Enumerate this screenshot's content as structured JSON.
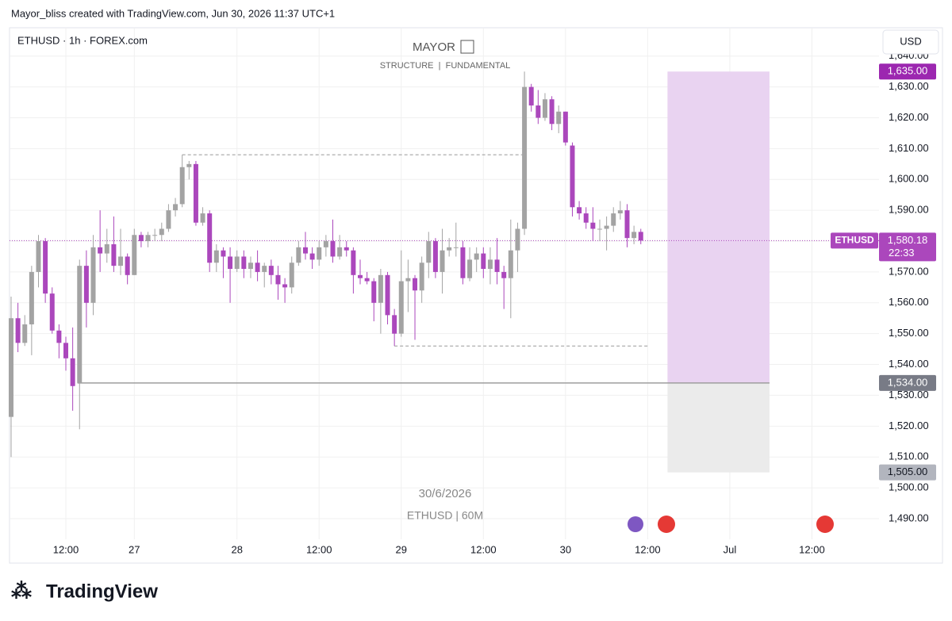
{
  "header": {
    "credit": "Mayor_bliss created with TradingView.com, Jun 30, 2026 11:37 UTC+1"
  },
  "chart_data": {
    "type": "candlestick",
    "symbol": "ETHUSD · 1h · FOREX.com",
    "currency": "USD",
    "watermark": {
      "title": "MAYOR",
      "subtitle": "STRUCTURE  |  FUNDAMENTAL",
      "date": "30/6/2026",
      "pair": "ETHUSD | 60M"
    },
    "up_color": "#a3a3a3",
    "down_color": "#ab47bc",
    "open": [
      1523,
      1555,
      1547,
      1553,
      1570,
      1580,
      1563,
      1551,
      1547,
      1542,
      1534,
      1572,
      1560,
      1578,
      1576,
      1579,
      1572,
      1575,
      1569,
      1582,
      1580,
      1582,
      1582,
      1584,
      1590,
      1592,
      1604,
      1605,
      1586,
      1589,
      1573,
      1577,
      1575,
      1571,
      1575,
      1571,
      1573,
      1570,
      1572,
      1569,
      1566,
      1565,
      1573,
      1578,
      1576,
      1574,
      1578,
      1580,
      1575,
      1578,
      1577,
      1569,
      1568,
      1567,
      1560,
      1569,
      1556,
      1550,
      1567,
      1568,
      1564,
      1573,
      1580,
      1570,
      1577,
      1578,
      1578,
      1568,
      1574,
      1576,
      1571,
      1574,
      1570,
      1568,
      1577,
      1584,
      1630,
      1624,
      1620,
      1626,
      1618,
      1622,
      1611,
      1591,
      1589,
      1586,
      1584,
      1584,
      1585,
      1589,
      1590,
      1581,
      1583
    ],
    "high": [
      1562,
      1560,
      1556,
      1572,
      1582,
      1581,
      1565,
      1553,
      1549,
      1552,
      1574,
      1577,
      1582,
      1590,
      1584,
      1588,
      1584,
      1576,
      1584,
      1583,
      1583,
      1584,
      1586,
      1592,
      1594,
      1608,
      1606,
      1606,
      1591,
      1590,
      1579,
      1578,
      1578,
      1577,
      1577,
      1575,
      1577,
      1573,
      1574,
      1572,
      1568,
      1575,
      1580,
      1583,
      1578,
      1580,
      1582,
      1587,
      1582,
      1580,
      1578,
      1574,
      1570,
      1568,
      1571,
      1570,
      1558,
      1577,
      1574,
      1569,
      1575,
      1583,
      1581,
      1584,
      1581,
      1586,
      1580,
      1578,
      1578,
      1578,
      1578,
      1581,
      1572,
      1587,
      1586,
      1635,
      1631,
      1629,
      1628,
      1627,
      1624,
      1622,
      1612,
      1593,
      1591,
      1591,
      1587,
      1588,
      1591,
      1593,
      1592,
      1585,
      1584
    ],
    "low": [
      1510,
      1544,
      1546,
      1543,
      1565,
      1560,
      1550,
      1542,
      1538,
      1525,
      1519,
      1552,
      1556,
      1570,
      1573,
      1570,
      1569,
      1566,
      1569,
      1578,
      1578,
      1580,
      1580,
      1583,
      1588,
      1591,
      1600,
      1585,
      1585,
      1570,
      1570,
      1568,
      1560,
      1570,
      1568,
      1568,
      1567,
      1565,
      1566,
      1561,
      1560,
      1563,
      1572,
      1574,
      1571,
      1572,
      1575,
      1573,
      1574,
      1575,
      1563,
      1566,
      1566,
      1554,
      1550,
      1553,
      1546,
      1549,
      1557,
      1548,
      1560,
      1568,
      1568,
      1563,
      1575,
      1575,
      1566,
      1567,
      1570,
      1568,
      1566,
      1566,
      1558,
      1555,
      1570,
      1582,
      1622,
      1618,
      1619,
      1616,
      1615,
      1611,
      1588,
      1587,
      1584,
      1580,
      1580,
      1577,
      1583,
      1587,
      1578,
      1579,
      1579
    ],
    "close": [
      1555,
      1547,
      1553,
      1570,
      1580,
      1563,
      1551,
      1547,
      1542,
      1533,
      1572,
      1560,
      1578,
      1576,
      1579,
      1572,
      1575,
      1569,
      1582,
      1580,
      1582,
      1582,
      1584,
      1590,
      1592,
      1604,
      1605,
      1586,
      1589,
      1573,
      1577,
      1575,
      1571,
      1575,
      1571,
      1573,
      1570,
      1572,
      1569,
      1566,
      1565,
      1573,
      1578,
      1576,
      1574,
      1578,
      1580,
      1575,
      1578,
      1577,
      1569,
      1568,
      1567,
      1560,
      1569,
      1556,
      1550,
      1567,
      1568,
      1564,
      1573,
      1580,
      1570,
      1577,
      1578,
      1578,
      1568,
      1574,
      1576,
      1571,
      1574,
      1570,
      1568,
      1577,
      1584,
      1630,
      1624,
      1620,
      1626,
      1618,
      1622,
      1612,
      1591,
      1589,
      1586,
      1584,
      1584,
      1585,
      1589,
      1590,
      1581,
      1583,
      1580.18
    ],
    "xlim": [
      -0.23,
      126.8
    ],
    "xticks": [
      {
        "value": 8,
        "label": "12:00"
      },
      {
        "value": 18,
        "label": "27"
      },
      {
        "value": 33,
        "label": "28"
      },
      {
        "value": 45,
        "label": "12:00"
      },
      {
        "value": 57,
        "label": "29"
      },
      {
        "value": 69,
        "label": "12:00"
      },
      {
        "value": 81,
        "label": "30"
      },
      {
        "value": 93,
        "label": "12:00"
      },
      {
        "value": 105,
        "label": "Jul"
      },
      {
        "value": 117,
        "label": "12:00"
      }
    ],
    "ylim": [
      1483.3,
      1649.2
    ],
    "yticks": [
      {
        "value": 1490,
        "label": "1,490.00"
      },
      {
        "value": 1500,
        "label": "1,500.00"
      },
      {
        "value": 1510,
        "label": "1,510.00"
      },
      {
        "value": 1520,
        "label": "1,520.00"
      },
      {
        "value": 1530,
        "label": "1,530.00"
      },
      {
        "value": 1540,
        "label": "1,540.00"
      },
      {
        "value": 1550,
        "label": "1,550.00"
      },
      {
        "value": 1560,
        "label": "1,560.00"
      },
      {
        "value": 1570,
        "label": "1,570.00"
      },
      {
        "value": 1580,
        "label": "1,580.00"
      },
      {
        "value": 1590,
        "label": "1,590.00"
      },
      {
        "value": 1600,
        "label": "1,600.00"
      },
      {
        "value": 1610,
        "label": "1,610.00"
      },
      {
        "value": 1620,
        "label": "1,620.00"
      },
      {
        "value": 1630,
        "label": "1,630.00"
      },
      {
        "value": 1640,
        "label": "1,640.00"
      }
    ],
    "dashed_levels": [
      {
        "value": 1608,
        "x": [
          25,
          75
        ]
      },
      {
        "value": 1546,
        "x": [
          56,
          93
        ]
      }
    ],
    "position": {
      "x": [
        95.9,
        110.8
      ],
      "entry_start": 9.7,
      "target": 1635,
      "target_label": "1,635.00",
      "entry": 1534,
      "entry_label": "1,534.00",
      "stop": 1505,
      "stop_label": "1,505.00",
      "target_color": "#e9d3f1",
      "stop_color": "#ebebeb"
    },
    "last_price": {
      "value": 1580.18,
      "label": "1,580.18",
      "countdown": "22:33",
      "name": "ETHUSD"
    }
  },
  "footer": {
    "brand": "TradingView"
  }
}
